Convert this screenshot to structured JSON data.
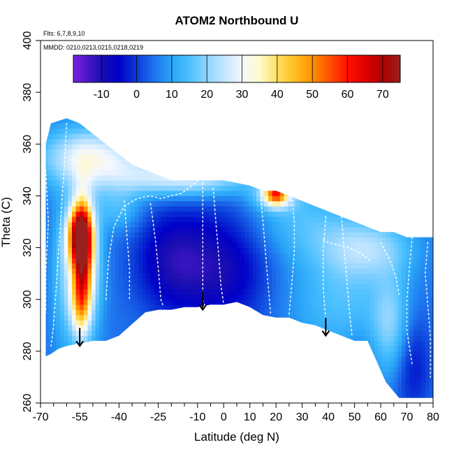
{
  "chart_data": {
    "type": "heatmap",
    "title": "ATOM2 Northbound U",
    "subtitle_lines": [
      "Flts: 6,7,8,9,10",
      "MMDD: 0210,0213,0215,0218,0219"
    ],
    "xlabel": "Latitude (deg N)",
    "ylabel": "Theta (C)",
    "xlim": [
      -70,
      80
    ],
    "ylim": [
      260,
      400
    ],
    "x_ticks": [
      -70,
      -55,
      -40,
      -25,
      -10,
      0,
      10,
      20,
      30,
      40,
      50,
      60,
      70,
      80
    ],
    "x_tick_labels": [
      "-70",
      "-55",
      "-40",
      "-25",
      "-10",
      "0",
      "10",
      "20",
      "30",
      "40",
      "50",
      "60",
      "70",
      "80"
    ],
    "x_minor_ticks": [
      -65,
      -60,
      -50,
      -45,
      -35,
      -30,
      -20,
      -15,
      -5,
      5,
      15,
      25,
      35,
      45,
      55,
      65,
      75
    ],
    "y_ticks": [
      260,
      280,
      300,
      320,
      340,
      360,
      380,
      400
    ],
    "y_tick_labels": [
      "260",
      "280",
      "300",
      "320",
      "340",
      "360",
      "380",
      "400"
    ],
    "colorbar": {
      "range": [
        -18,
        75
      ],
      "ticks": [
        -10,
        0,
        10,
        20,
        30,
        40,
        50,
        60,
        70
      ],
      "tick_labels": [
        "-10",
        "0",
        "10",
        "20",
        "30",
        "40",
        "50",
        "60",
        "70"
      ],
      "stops": [
        {
          "v": -18,
          "color": "#7a1fe0"
        },
        {
          "v": -10,
          "color": "#1a0fb0"
        },
        {
          "v": -5,
          "color": "#0000c8"
        },
        {
          "v": 0,
          "color": "#0a3ad8"
        },
        {
          "v": 5,
          "color": "#1e74ee"
        },
        {
          "v": 10,
          "color": "#2aa6f8"
        },
        {
          "v": 15,
          "color": "#4cc0ff"
        },
        {
          "v": 20,
          "color": "#8ed4ff"
        },
        {
          "v": 25,
          "color": "#c4e6ff"
        },
        {
          "v": 30,
          "color": "#f4f8ff"
        },
        {
          "v": 35,
          "color": "#fffacc"
        },
        {
          "v": 40,
          "color": "#ffe060"
        },
        {
          "v": 45,
          "color": "#ffbf20"
        },
        {
          "v": 50,
          "color": "#ff9000"
        },
        {
          "v": 55,
          "color": "#ff5000"
        },
        {
          "v": 60,
          "color": "#ff1000"
        },
        {
          "v": 65,
          "color": "#e00000"
        },
        {
          "v": 70,
          "color": "#b00000"
        },
        {
          "v": 75,
          "color": "#9a2020"
        }
      ]
    },
    "field": {
      "outline_top": [
        [
          -68,
          360
        ],
        [
          -66,
          368
        ],
        [
          -60,
          370
        ],
        [
          -55,
          368
        ],
        [
          -50,
          364
        ],
        [
          -45,
          360
        ],
        [
          -40,
          356
        ],
        [
          -35,
          352
        ],
        [
          -30,
          350
        ],
        [
          -25,
          348
        ],
        [
          -20,
          346
        ],
        [
          -15,
          346
        ],
        [
          -10,
          346
        ],
        [
          -5,
          346
        ],
        [
          0,
          346
        ],
        [
          5,
          345
        ],
        [
          10,
          344
        ],
        [
          15,
          342
        ],
        [
          20,
          342
        ],
        [
          25,
          340
        ],
        [
          30,
          338
        ],
        [
          35,
          336
        ],
        [
          40,
          334
        ],
        [
          45,
          332
        ],
        [
          50,
          330
        ],
        [
          55,
          328
        ],
        [
          60,
          326
        ],
        [
          65,
          326
        ],
        [
          70,
          324
        ],
        [
          75,
          324
        ],
        [
          80,
          324
        ]
      ],
      "outline_bottom": [
        [
          80,
          262
        ],
        [
          74,
          262
        ],
        [
          67,
          262
        ],
        [
          62,
          268
        ],
        [
          55,
          284
        ],
        [
          50,
          284
        ],
        [
          45,
          286
        ],
        [
          40,
          288
        ],
        [
          35,
          290
        ],
        [
          30,
          291
        ],
        [
          25,
          293
        ],
        [
          20,
          293
        ],
        [
          15,
          294
        ],
        [
          10,
          297
        ],
        [
          5,
          299
        ],
        [
          0,
          298
        ],
        [
          -5,
          298
        ],
        [
          -10,
          297
        ],
        [
          -15,
          297
        ],
        [
          -20,
          296
        ],
        [
          -25,
          296
        ],
        [
          -30,
          295
        ],
        [
          -40,
          286
        ],
        [
          -45,
          284
        ],
        [
          -50,
          284
        ],
        [
          -55,
          283
        ],
        [
          -60,
          282
        ],
        [
          -63,
          281
        ],
        [
          -66,
          279
        ],
        [
          -68,
          278
        ]
      ],
      "background_value": 5,
      "features": [
        {
          "lat": -55,
          "theta": 325,
          "value": 55,
          "sig_lat": 3.2,
          "sig_theta": 8
        },
        {
          "lat": -54,
          "theta": 316,
          "value": 40,
          "sig_lat": 2.5,
          "sig_theta": 16
        },
        {
          "lat": -55,
          "theta": 298,
          "value": 22,
          "sig_lat": 2.5,
          "sig_theta": 9
        },
        {
          "lat": -52,
          "theta": 312,
          "value": 25,
          "sig_lat": 4,
          "sig_theta": 18
        },
        {
          "lat": -60,
          "theta": 310,
          "value": 18,
          "sig_lat": 4,
          "sig_theta": 20
        },
        {
          "lat": -50,
          "theta": 355,
          "value": 30,
          "sig_lat": 14,
          "sig_theta": 8
        },
        {
          "lat": -15,
          "theta": 347,
          "value": 28,
          "sig_lat": 18,
          "sig_theta": 5
        },
        {
          "lat": 20,
          "theta": 341,
          "value": 40,
          "sig_lat": 3,
          "sig_theta": 3
        },
        {
          "lat": 20,
          "theta": 340,
          "value": 22,
          "sig_lat": 6,
          "sig_theta": 4
        },
        {
          "lat": 55,
          "theta": 320,
          "value": 20,
          "sig_lat": 12,
          "sig_theta": 8
        },
        {
          "lat": 45,
          "theta": 300,
          "value": 15,
          "sig_lat": 14,
          "sig_theta": 15
        },
        {
          "lat": 64,
          "theta": 290,
          "value": 18,
          "sig_lat": 5,
          "sig_theta": 14
        },
        {
          "lat": 30,
          "theta": 330,
          "value": 14,
          "sig_lat": 14,
          "sig_theta": 10
        },
        {
          "lat": -40,
          "theta": 335,
          "value": 14,
          "sig_lat": 6,
          "sig_theta": 6
        },
        {
          "lat": -20,
          "theta": 315,
          "value": -8,
          "sig_lat": 10,
          "sig_theta": 14
        },
        {
          "lat": 0,
          "theta": 312,
          "value": -8,
          "sig_lat": 12,
          "sig_theta": 16
        },
        {
          "lat": 72,
          "theta": 275,
          "value": -4,
          "sig_lat": 5,
          "sig_theta": 14
        },
        {
          "lat": 52,
          "theta": 278,
          "value": 2,
          "sig_lat": 4,
          "sig_theta": 8
        }
      ]
    },
    "flight_tracks": [
      [
        [
          -45,
          300
        ],
        [
          -44,
          315
        ],
        [
          -42,
          328
        ],
        [
          -38,
          336
        ],
        [
          -33,
          339
        ],
        [
          -28,
          340
        ],
        [
          -24,
          339
        ],
        [
          -20,
          340
        ],
        [
          -16,
          341
        ],
        [
          -12,
          344
        ],
        [
          -9,
          347
        ],
        [
          -7,
          347
        ]
      ],
      [
        [
          -28,
          337
        ],
        [
          -27,
          330
        ],
        [
          -26,
          322
        ],
        [
          -25,
          312
        ],
        [
          -24,
          300
        ],
        [
          -23,
          297
        ]
      ],
      [
        [
          -8,
          345
        ],
        [
          -8,
          333
        ],
        [
          -8,
          320
        ],
        [
          -8,
          310
        ],
        [
          -8,
          300
        ],
        [
          -7,
          297
        ]
      ],
      [
        [
          -60,
          368
        ],
        [
          -61,
          350
        ],
        [
          -62,
          335
        ],
        [
          -63,
          320
        ],
        [
          -64,
          305
        ],
        [
          -65,
          290
        ],
        [
          -66,
          282
        ]
      ],
      [
        [
          -4,
          343
        ],
        [
          -3,
          330
        ],
        [
          -2,
          318
        ],
        [
          -1,
          305
        ],
        [
          0,
          298
        ]
      ],
      [
        [
          14,
          342
        ],
        [
          15,
          330
        ],
        [
          16,
          318
        ],
        [
          17,
          305
        ],
        [
          18,
          294
        ]
      ],
      [
        [
          38,
          323
        ],
        [
          40,
          322
        ],
        [
          44,
          321
        ],
        [
          48,
          320
        ],
        [
          52,
          318
        ],
        [
          56,
          315
        ]
      ],
      [
        [
          39,
          332
        ],
        [
          38,
          318
        ],
        [
          38,
          305
        ],
        [
          39,
          292
        ]
      ],
      [
        [
          60,
          322
        ],
        [
          62,
          318
        ],
        [
          64,
          314
        ],
        [
          66,
          308
        ],
        [
          67,
          302
        ]
      ],
      [
        [
          72,
          324
        ],
        [
          71,
          312
        ],
        [
          70,
          300
        ],
        [
          70,
          288
        ],
        [
          72,
          275
        ]
      ],
      [
        [
          26,
          340
        ],
        [
          27,
          330
        ],
        [
          27,
          318
        ],
        [
          26,
          306
        ],
        [
          25,
          294
        ]
      ],
      [
        [
          -38,
          338
        ],
        [
          -37,
          325
        ],
        [
          -36,
          312
        ],
        [
          -36,
          300
        ]
      ],
      [
        [
          -68,
          350
        ],
        [
          -67,
          330
        ],
        [
          -68,
          310
        ],
        [
          -68,
          295
        ]
      ],
      [
        [
          45,
          332
        ],
        [
          46,
          320
        ],
        [
          47,
          308
        ],
        [
          48,
          296
        ],
        [
          49,
          286
        ]
      ],
      [
        [
          78,
          322
        ],
        [
          77,
          310
        ],
        [
          78,
          298
        ],
        [
          79,
          285
        ],
        [
          79,
          270
        ]
      ]
    ],
    "arrows": [
      {
        "lat": -55,
        "theta_top": 289,
        "theta_bottom": 282
      },
      {
        "lat": -8,
        "theta_top": 303,
        "theta_bottom": 296
      },
      {
        "lat": 39,
        "theta_top": 293,
        "theta_bottom": 286
      }
    ]
  }
}
